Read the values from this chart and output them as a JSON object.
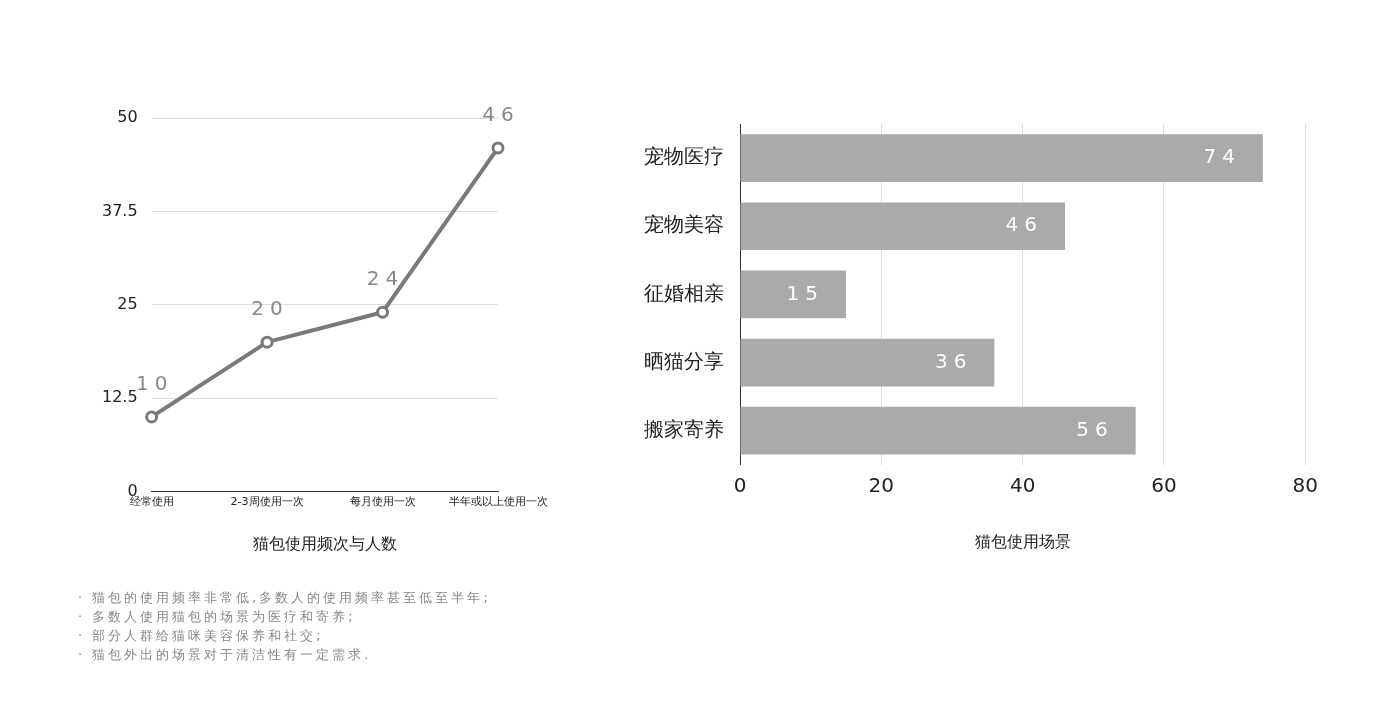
{
  "chart_data": [
    {
      "type": "line",
      "xlabel": "猫包使用频次与人数",
      "categories": [
        "经常使用",
        "2-3周使用一次",
        "每月使用一次",
        "半年或以上使用一次"
      ],
      "series": [
        {
          "color": "#7a7a7e",
          "values": [
            10,
            20,
            24,
            46
          ]
        }
      ],
      "ylim": [
        0,
        50
      ],
      "yticks": [
        0,
        12.5,
        25,
        37.5,
        50
      ],
      "grid": "y",
      "marker": "circle",
      "data_labels": true,
      "legend": false,
      "annotations": [
        "· 猫包的使用频率非常低,多数人的使用频率甚至低至半年;",
        "· 多数人使用猫包的场景为医疗和寄养;",
        "· 部分人群给猫咪美容保养和社交;",
        "· 猫包外出的场景对于清洁性有一定需求."
      ]
    },
    {
      "type": "bar",
      "orientation": "horizontal",
      "xlabel": "猫包使用场景",
      "categories": [
        "宠物医疗",
        "宠物美容",
        "征婚相亲",
        "晒猫分享",
        "搬家寄养"
      ],
      "series": [
        {
          "color": "#aaaaaa",
          "values": [
            74,
            46,
            15,
            36,
            56
          ]
        }
      ],
      "xlim": [
        0,
        80
      ],
      "xticks": [
        0,
        20,
        40,
        60,
        80
      ],
      "grid": "x",
      "data_labels": true,
      "legend": false
    }
  ]
}
